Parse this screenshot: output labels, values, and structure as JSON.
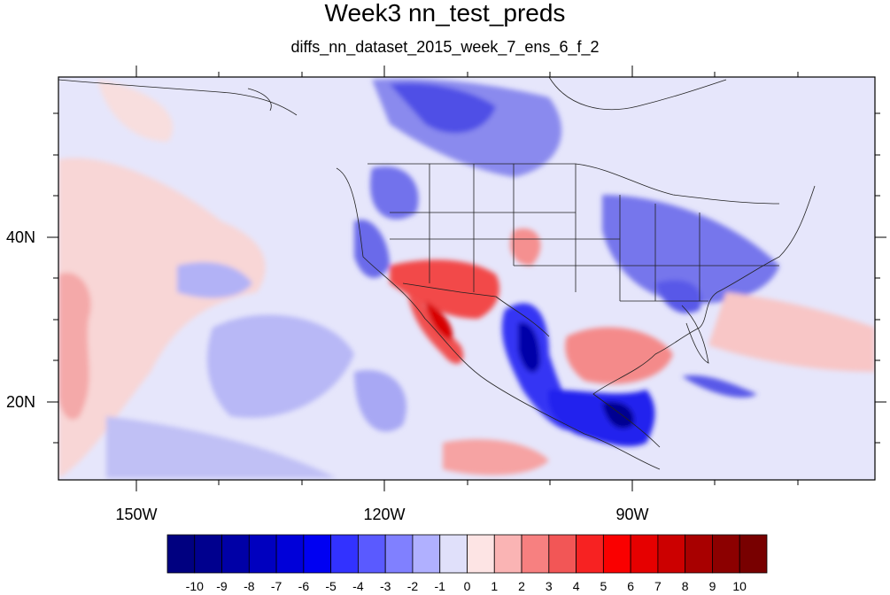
{
  "title": "Week3 nn_test_preds",
  "subtitle": "diffs_nn_dataset_2015_week_7_ens_6_f_2",
  "axes": {
    "lat_labels": [
      "40N",
      "20N"
    ],
    "lon_labels": [
      "150W",
      "120W",
      "90W"
    ]
  },
  "colorbar": {
    "labels": [
      "-10",
      "-9",
      "-8",
      "-7",
      "-6",
      "-5",
      "-4",
      "-3",
      "-2",
      "-1",
      "0",
      "1",
      "2",
      "3",
      "4",
      "5",
      "6",
      "7",
      "8",
      "9",
      "10"
    ],
    "colors": [
      "#000080",
      "#00008e",
      "#0000a6",
      "#0000bf",
      "#0000d9",
      "#0000f2",
      "#3232ff",
      "#5a5aff",
      "#8080ff",
      "#b0b0ff",
      "#e0e0fa",
      "#fde4e4",
      "#fab4b4",
      "#f78080",
      "#f25656",
      "#f72222",
      "#fa0000",
      "#e60000",
      "#cc0000",
      "#a80000",
      "#8c0000",
      "#780000"
    ]
  },
  "map": {
    "projection": "cylindrical-equidistant",
    "lon_range": [
      -160,
      -60
    ],
    "lat_range": [
      10,
      59
    ],
    "field": "differences (contour fill)"
  }
}
